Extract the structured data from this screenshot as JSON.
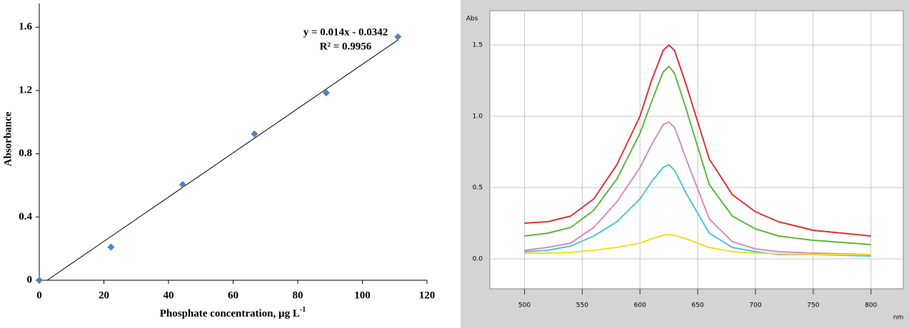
{
  "chart_data": [
    {
      "type": "scatter",
      "x_label": "Phosphate concentration, µg L",
      "x_label_sup": "-1",
      "y_label": "Absorbance",
      "x": [
        0,
        22.2,
        44.4,
        66.6,
        88.8,
        111
      ],
      "values": [
        0,
        0.21,
        0.605,
        0.925,
        1.185,
        1.54
      ],
      "color": "#4f81bd",
      "trendline": {
        "slope": 0.014,
        "intercept": -0.0342,
        "label": "y = 0.014x - 0.0342",
        "r2_label": "R² = 0.9956"
      },
      "xlim": [
        0,
        120
      ],
      "xticks": [
        0,
        20,
        40,
        60,
        80,
        100,
        120
      ],
      "ylim": [
        0,
        1.75
      ],
      "yticks": [
        0,
        0.4,
        0.8,
        1.2,
        1.6
      ]
    },
    {
      "type": "line",
      "x_label": "nm",
      "y_label": "Abs",
      "x": [
        500,
        520,
        540,
        560,
        580,
        600,
        610,
        620,
        625,
        630,
        640,
        660,
        680,
        700,
        720,
        750,
        800
      ],
      "series": [
        {
          "color": "#e03030",
          "values": [
            0.25,
            0.26,
            0.3,
            0.42,
            0.66,
            1.0,
            1.25,
            1.46,
            1.5,
            1.46,
            1.22,
            0.7,
            0.45,
            0.33,
            0.26,
            0.2,
            0.16
          ]
        },
        {
          "color": "#5cb83a",
          "values": [
            0.16,
            0.18,
            0.22,
            0.34,
            0.56,
            0.88,
            1.1,
            1.31,
            1.35,
            1.3,
            1.05,
            0.52,
            0.3,
            0.21,
            0.16,
            0.13,
            0.1
          ]
        },
        {
          "color": "#d58ac8",
          "values": [
            0.06,
            0.08,
            0.11,
            0.22,
            0.4,
            0.64,
            0.8,
            0.94,
            0.96,
            0.92,
            0.7,
            0.28,
            0.12,
            0.07,
            0.05,
            0.04,
            0.03
          ]
        },
        {
          "color": "#4fc3dc",
          "values": [
            0.05,
            0.06,
            0.09,
            0.16,
            0.26,
            0.42,
            0.54,
            0.64,
            0.66,
            0.62,
            0.46,
            0.18,
            0.08,
            0.05,
            0.03,
            0.03,
            0.02
          ]
        },
        {
          "color": "#f0e020",
          "values": [
            0.04,
            0.04,
            0.045,
            0.06,
            0.08,
            0.11,
            0.14,
            0.165,
            0.17,
            0.165,
            0.14,
            0.08,
            0.05,
            0.04,
            0.035,
            0.03,
            0.03
          ]
        }
      ],
      "xlim": [
        470,
        828
      ],
      "xticks": [
        500,
        550,
        600,
        650,
        700,
        750,
        800
      ],
      "ylim": [
        -0.21,
        1.74
      ],
      "yticks": [
        {
          "value": 0,
          "label": "0.0"
        },
        0.5,
        {
          "value": 1,
          "label": "1.0"
        },
        1.5
      ],
      "grid": true
    }
  ]
}
